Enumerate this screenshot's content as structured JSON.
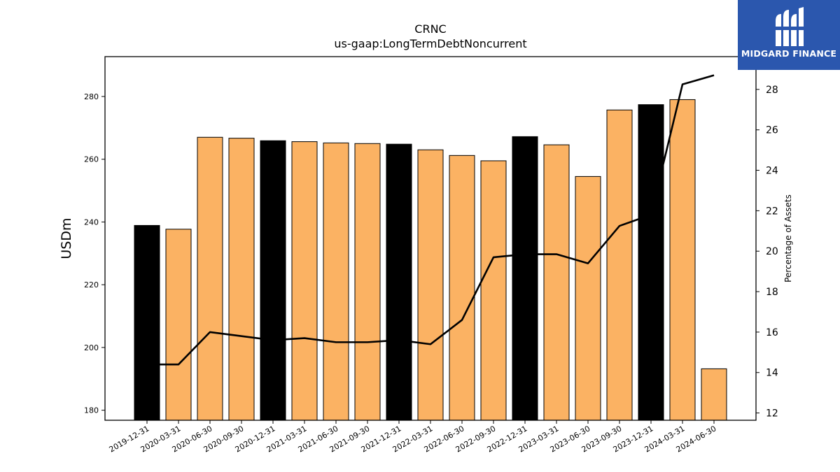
{
  "brand": {
    "name": "MIDGARD FINANCE",
    "logo_icon": "midgard-m-logo-icon",
    "color": "#2b57ae"
  },
  "chart_data": {
    "type": "bar",
    "title": "CRNC",
    "subtitle": "us-gaap:LongTermDebtNoncurrent",
    "ylabel": "USDm",
    "y2label": "Percentage of Assets",
    "ylim": [
      176.8,
      292.7
    ],
    "y2lim": [
      11.64,
      29.62
    ],
    "yticks": [
      180,
      200,
      220,
      240,
      260,
      280
    ],
    "y2ticks": [
      12,
      14,
      16,
      18,
      20,
      22,
      24,
      26,
      28
    ],
    "categories": [
      "2019-12-31",
      "2020-03-31",
      "2020-06-30",
      "2020-09-30",
      "2020-12-31",
      "2021-03-31",
      "2021-06-30",
      "2021-09-30",
      "2021-12-31",
      "2022-03-31",
      "2022-06-30",
      "2022-09-30",
      "2022-12-31",
      "2023-03-31",
      "2023-06-30",
      "2023-09-30",
      "2023-12-31",
      "2024-03-31",
      "2024-06-30"
    ],
    "series": [
      {
        "type": "bar",
        "values": [
          238.9,
          237.7,
          267.0,
          266.7,
          265.9,
          265.6,
          265.2,
          265.0,
          264.8,
          263.0,
          261.2,
          259.5,
          267.2,
          264.6,
          254.5,
          275.7,
          277.4,
          279.0,
          193.2
        ],
        "highlight": [
          true,
          false,
          false,
          false,
          true,
          false,
          false,
          false,
          true,
          false,
          false,
          false,
          true,
          false,
          false,
          false,
          true,
          false,
          false
        ],
        "color": "#fbb263",
        "highlight_color": "#000000"
      },
      {
        "type": "line",
        "axis": "right",
        "values": [
          14.4,
          14.4,
          16.0,
          15.8,
          15.6,
          15.7,
          15.5,
          15.5,
          15.6,
          15.4,
          16.6,
          19.7,
          19.85,
          19.85,
          19.4,
          21.25,
          21.8,
          28.25,
          28.7
        ],
        "color": "#000000"
      }
    ],
    "grid": false,
    "legend": "none"
  }
}
